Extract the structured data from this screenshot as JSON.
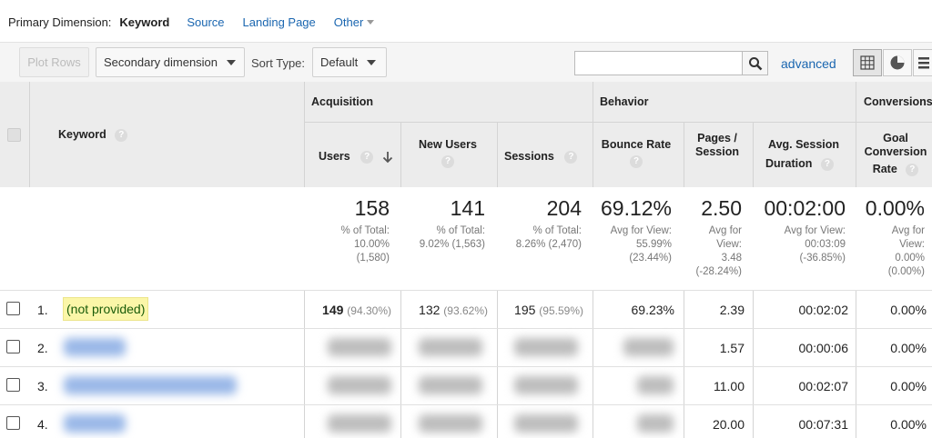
{
  "primary_dimension": {
    "label": "Primary Dimension:",
    "active": "Keyword",
    "options": [
      "Source",
      "Landing Page"
    ],
    "other": "Other"
  },
  "toolbar": {
    "plot_rows": "Plot Rows",
    "secondary_dimension": "Secondary dimension",
    "sort_type_label": "Sort Type:",
    "sort_type_value": "Default",
    "search_value": "",
    "advanced": "advanced"
  },
  "icons": {
    "search": "search-icon",
    "grid_view": "grid-view-icon",
    "pie_view": "pie-view-icon",
    "bar_view": "bar-view-icon",
    "sort_desc": "arrow-down-icon",
    "help": "question-icon"
  },
  "table": {
    "groups": {
      "acquisition": "Acquisition",
      "behavior": "Behavior",
      "conversions": "Conversions"
    },
    "columns": {
      "keyword": "Keyword",
      "users": "Users",
      "new_users": "New Users",
      "sessions": "Sessions",
      "bounce_rate": "Bounce Rate",
      "pages_session_1": "Pages /",
      "pages_session_2": "Session",
      "avg_session_1": "Avg. Session",
      "avg_session_2": "Duration",
      "goal_conv_1": "Goal",
      "goal_conv_2": "Conversion",
      "goal_conv_3": "Rate",
      "help": "?"
    },
    "totals": {
      "users": {
        "value": "158",
        "l1": "% of Total:",
        "l2": "10.00%",
        "l3": "(1,580)"
      },
      "new_users": {
        "value": "141",
        "l1": "% of Total:",
        "l2": "9.02% (1,563)"
      },
      "sessions": {
        "value": "204",
        "l1": "% of Total:",
        "l2": "8.26% (2,470)"
      },
      "bounce_rate": {
        "value": "69.12%",
        "l1": "Avg for View:",
        "l2": "55.99%",
        "l3": "(23.44%)"
      },
      "pages_session": {
        "value": "2.50",
        "l1": "Avg for",
        "l2": "View:",
        "l3": "3.48",
        "l4": "(-28.24%)"
      },
      "avg_session": {
        "value": "00:02:00",
        "l1": "Avg for View:",
        "l2": "00:03:09",
        "l3": "(-36.85%)"
      },
      "goal_conv": {
        "value": "0.00%",
        "l1": "Avg for",
        "l2": "View:",
        "l3": "0.00%",
        "l4": "(0.00%)"
      }
    },
    "rows": [
      {
        "num": "1.",
        "keyword": "(not provided)",
        "users": "149",
        "users_pct": "(94.30%)",
        "new_users": "132",
        "new_users_pct": "(93.62%)",
        "sessions": "195",
        "sessions_pct": "(95.59%)",
        "bounce_rate": "69.23%",
        "pages_session": "2.39",
        "avg_session": "00:02:02",
        "goal_conv": "0.00%"
      },
      {
        "num": "2.",
        "pages_session": "1.57",
        "avg_session": "00:00:06",
        "goal_conv": "0.00%"
      },
      {
        "num": "3.",
        "pages_session": "11.00",
        "avg_session": "00:02:07",
        "goal_conv": "0.00%"
      },
      {
        "num": "4.",
        "pages_session": "20.00",
        "avg_session": "00:07:31",
        "goal_conv": "0.00%"
      }
    ]
  }
}
